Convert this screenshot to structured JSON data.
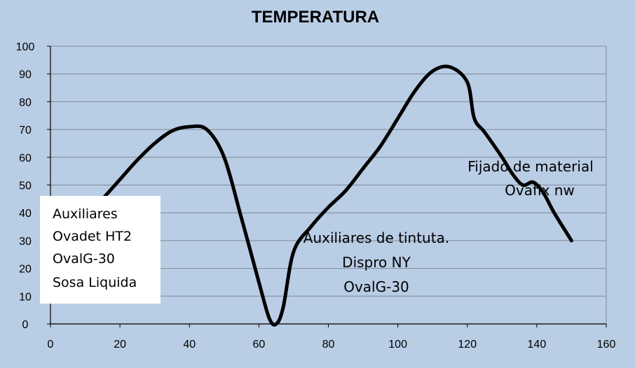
{
  "chart_data": {
    "type": "line",
    "title": "TEMPERATURA",
    "xlabel": "",
    "ylabel": "",
    "xlim": [
      0,
      160
    ],
    "ylim": [
      0,
      100
    ],
    "x_ticks": [
      0,
      20,
      40,
      60,
      80,
      100,
      120,
      140,
      160
    ],
    "y_ticks": [
      0,
      10,
      20,
      30,
      40,
      50,
      60,
      70,
      80,
      90,
      100
    ],
    "grid": "horizontal",
    "series": [
      {
        "x": [
          15,
          20,
          25,
          30,
          35,
          40,
          45,
          50,
          55,
          60,
          63,
          65,
          67,
          70,
          75,
          80,
          85,
          90,
          95,
          100,
          105,
          110,
          115,
          120,
          122,
          125,
          130,
          133,
          136,
          139,
          142,
          145,
          150
        ],
        "y": [
          45,
          52,
          59,
          65,
          69.5,
          71,
          70,
          60,
          38,
          15,
          2,
          0,
          6,
          26,
          35,
          42,
          48,
          56,
          64,
          74,
          84,
          91,
          92.5,
          87,
          74,
          69,
          60,
          54,
          50,
          51,
          47,
          40,
          30
        ],
        "color": "#000000"
      }
    ],
    "annotations": [
      {
        "lines": [
          "Auxiliares",
          "Ovadet HT2",
          "OvalG-30",
          "Sosa Liquida"
        ],
        "boxed": true
      },
      {
        "lines": [
          "Auxiliares de tintuta.",
          "Dispro NY",
          "OvalG-30"
        ]
      },
      {
        "lines": [
          "Fijado de material",
          "Ovafix nw"
        ]
      }
    ],
    "colors": {
      "background": "#b9cde5",
      "grid": "#7f8a96",
      "line": "#000000",
      "box": "#ffffff"
    }
  }
}
